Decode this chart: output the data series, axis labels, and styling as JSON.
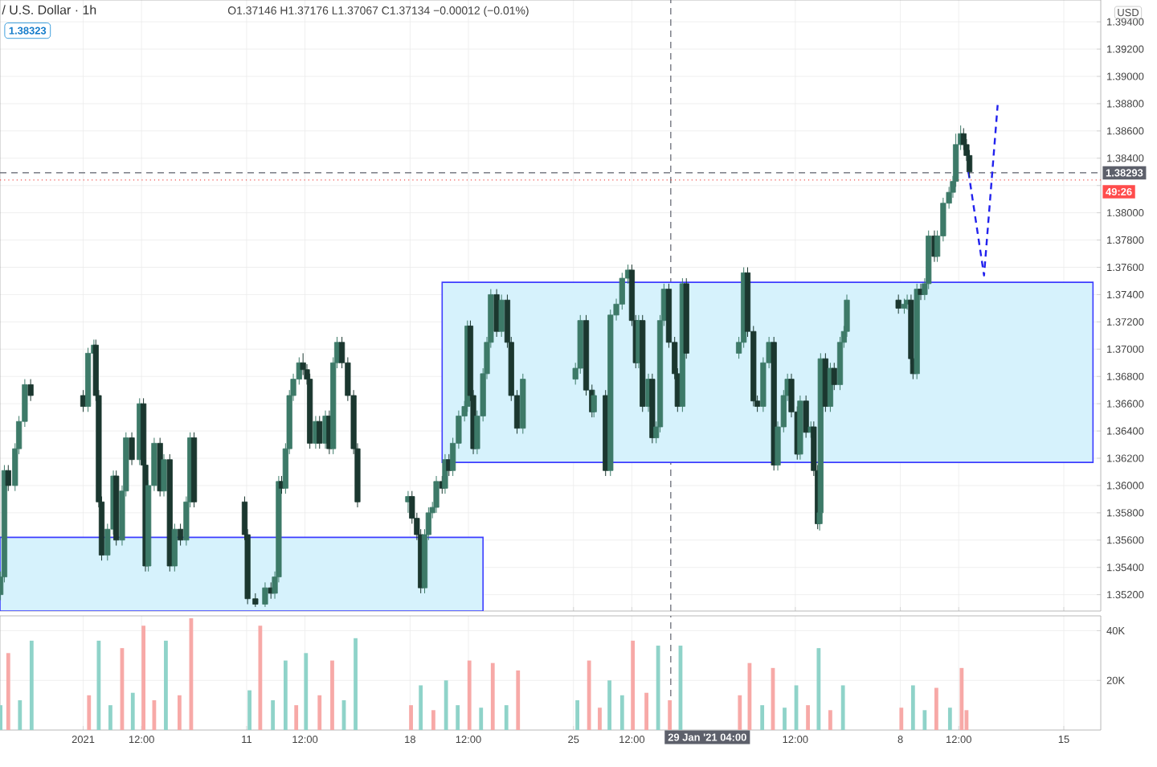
{
  "chart_data": [
    {
      "type": "candlestick",
      "title": "/ U.S. Dollar · 1h",
      "subtitle": "O1.37146 H1.37176 L1.37067 C1.37134 −0.00012 (−0.01%)",
      "ylabel": "USD",
      "annotations": [
        "1.38323",
        {
          "text": "49:26",
          "x": "2021-02-16T14:00",
          "y": 1.3824
        }
      ],
      "colors": [
        "#3d7a68",
        "#3d7a68",
        "#1b372f",
        "#3d7a68",
        "#3d7a68",
        "#3d7a68",
        "#1b372f",
        "#1b372f",
        "#3d7a68",
        "#3d7a68",
        "#1b372f",
        "#1b372f",
        "#1b372f",
        "#3d7a68",
        "#3d7a68",
        "#1b372f",
        "#3d7a68",
        "#3d7a68",
        "#1b372f",
        "#3d7a68",
        "#1b372f",
        "#1b372f",
        "#3d7a68",
        "#3d7a68",
        "#1b372f",
        "#3d7a68",
        "#1b372f",
        "#3d7a68",
        "#1b372f",
        "#3d7a68",
        "#3d7a68",
        "#1b372f",
        "#1b372f",
        "#1b372f",
        "#1b372f",
        "#3d7a68",
        "#1b372f",
        "#3d7a68",
        "#3d7a68",
        "#1b372f",
        "#3d7a68",
        "#3d7a68",
        "#3d7a68",
        "#3d7a68",
        "#1b372f",
        "#1b372f",
        "#1b372f",
        "#3d7a68",
        "#1b372f",
        "#3d7a68",
        "#1b372f",
        "#3d7a68",
        "#3d7a68",
        "#1b372f",
        "#1b372f",
        "#1b372f",
        "#1b372f",
        "#3d7a68",
        "#1b372f",
        "#1b372f",
        "#1b372f",
        "#3d7a68",
        "#3d7a68",
        "#3d7a68",
        "#3d7a68",
        "#1b372f",
        "#3d7a68",
        "#1b372f",
        "#3d7a68",
        "#3d7a68",
        "#3d7a68",
        "#3d7a68",
        "#1b372f",
        "#1b372f",
        "#3d7a68",
        "#3d7a68",
        "#3d7a68",
        "#3d7a68",
        "#1b372f",
        "#3d7a68",
        "#1b372f",
        "#1b372f",
        "#1b372f",
        "#3d7a68",
        "#3d7a68",
        "#3d7a68",
        "#1b372f",
        "#1b372f",
        "#3d7a68",
        "#1b372f",
        "#3d7a68",
        "#3d7a68",
        "#3d7a68",
        "#3d7a68",
        "#1b372f",
        "#1b372f",
        "#3d7a68",
        "#1b372f",
        "#3d7a68",
        "#1b372f",
        "#3d7a68",
        "#3d7a68",
        "#3d7a68",
        "#1b372f",
        "#1b372f",
        "#1b372f",
        "#3d7a68",
        "#1b372f",
        "#3d7a68",
        "#3d7a68",
        "#1b372f",
        "#1b372f",
        "#1b372f",
        "#3d7a68",
        "#3d7a68",
        "#1b372f",
        "#3d7a68",
        "#3d7a68",
        "#3d7a68",
        "#1b372f",
        "#1b372f",
        "#3d7a68",
        "#1b372f",
        "#3d7a68",
        "#1b372f",
        "#1b372f",
        "#3d7a68",
        "#3d7a68",
        "#1b372f",
        "#3d7a68",
        "#1b372f",
        "#3d7a68",
        "#3d7a68",
        "#3d7a68",
        "#1b372f",
        "#3d7a68",
        "#3d7a68",
        "#1b372f",
        "#1b372f",
        "#3d7a68",
        "#1b372f",
        "#3d7a68",
        "#3d7a68",
        "#1b372f",
        "#3d7a68",
        "#3d7a68",
        "#3d7a68",
        "#3d7a68",
        "#3d7a68",
        "#3d7a68",
        "#1b372f",
        "#1b372f",
        "#1b372f"
      ],
      "x": [
        "2020-12-31T11:00",
        "2020-12-31T15:00",
        "2020-12-31T19:00",
        "2021-01-01T02:00",
        "2021-01-01T06:00",
        "2021-01-01T12:00",
        "2021-01-01T18:00",
        "2021-01-04T00:00",
        "2021-01-04T05:00",
        "2021-01-04T11:00",
        "2021-01-04T13:00",
        "2021-01-04T16:00",
        "2021-01-04T19:00",
        "2021-01-05T01:00",
        "2021-01-05T07:00",
        "2021-01-05T10:00",
        "2021-01-05T16:00",
        "2021-01-05T20:00",
        "2021-01-06T02:00",
        "2021-01-06T10:00",
        "2021-01-06T14:00",
        "2021-01-06T16:00",
        "2021-01-06T19:00",
        "2021-01-07T01:00",
        "2021-01-07T07:00",
        "2021-01-07T11:00",
        "2021-01-07T17:00",
        "2021-01-07T22:00",
        "2021-01-08T04:00",
        "2021-01-08T10:00",
        "2021-01-08T14:00",
        "2021-01-08T18:00",
        "2021-01-10T22:00",
        "2021-01-11T01:00",
        "2021-01-11T09:00",
        "2021-01-11T19:00",
        "2021-01-12T01:00",
        "2021-01-12T05:00",
        "2021-01-12T09:00",
        "2021-01-12T12:00",
        "2021-01-12T16:00",
        "2021-01-12T20:00",
        "2021-01-13T00:00",
        "2021-01-13T06:00",
        "2021-01-13T10:00",
        "2021-01-13T14:00",
        "2021-01-13T17:00",
        "2021-01-13T23:00",
        "2021-01-14T03:00",
        "2021-01-14T09:00",
        "2021-01-14T13:00",
        "2021-01-14T17:00",
        "2021-01-14T21:00",
        "2021-01-15T02:00",
        "2021-01-15T08:00",
        "2021-01-15T14:00",
        "2021-01-15T18:00",
        "2021-01-17T22:00",
        "2021-01-18T02:00",
        "2021-01-18T07:00",
        "2021-01-18T11:00",
        "2021-01-18T15:00",
        "2021-01-18T19:00",
        "2021-01-18T23:00",
        "2021-01-19T03:00",
        "2021-01-19T09:00",
        "2021-01-19T12:00",
        "2021-01-19T16:00",
        "2021-01-19T20:00",
        "2021-01-20T02:00",
        "2021-01-20T08:00",
        "2021-01-20T11:00",
        "2021-01-20T14:00",
        "2021-01-20T17:00",
        "2021-01-20T21:00",
        "2021-01-21T03:00",
        "2021-01-21T07:00",
        "2021-01-21T11:00",
        "2021-01-21T17:00",
        "2021-01-21T22:00",
        "2021-01-22T04:00",
        "2021-01-22T08:00",
        "2021-01-22T14:00",
        "2021-01-22T20:00",
        "2021-01-25T02:00",
        "2021-01-25T07:00",
        "2021-01-25T13:00",
        "2021-01-25T19:00",
        "2021-01-25T21:00",
        "2021-01-26T09:00",
        "2021-01-26T14:00",
        "2021-01-26T20:00",
        "2021-01-27T02:00",
        "2021-01-27T08:00",
        "2021-01-27T12:00",
        "2021-01-27T16:00",
        "2021-01-27T19:00",
        "2021-01-27T23:00",
        "2021-01-28T05:00",
        "2021-01-28T09:00",
        "2021-01-28T13:00",
        "2021-01-28T17:00",
        "2021-01-28T21:00",
        "2021-01-29T02:00",
        "2021-01-29T08:00",
        "2021-01-29T11:00",
        "2021-01-29T16:00",
        "2021-01-29T20:00",
        "2021-02-01T02:00",
        "2021-02-01T07:00",
        "2021-02-01T11:00",
        "2021-02-01T17:00",
        "2021-02-01T21:00",
        "2021-02-02T03:00",
        "2021-02-02T09:00",
        "2021-02-02T14:00",
        "2021-02-02T18:00",
        "2021-02-03T00:00",
        "2021-02-03T04:00",
        "2021-02-03T08:00",
        "2021-02-03T14:00",
        "2021-02-03T17:00",
        "2021-02-03T23:00",
        "2021-02-04T04:00",
        "2021-02-04T07:00",
        "2021-02-04T11:00",
        "2021-02-04T13:00",
        "2021-02-04T14:00",
        "2021-02-04T19:00",
        "2021-02-05T00:00",
        "2021-02-05T04:00",
        "2021-02-05T10:00",
        "2021-02-05T14:00",
        "2021-02-05T17:00",
        "2021-02-07T22:00",
        "2021-02-08T04:00",
        "2021-02-08T07:00",
        "2021-02-08T11:00",
        "2021-02-08T13:00",
        "2021-02-08T17:00",
        "2021-02-08T21:00",
        "2021-02-09T01:00",
        "2021-02-09T05:00",
        "2021-02-09T11:00",
        "2021-02-09T14:00",
        "2021-02-09T20:00",
        "2021-02-10T02:00",
        "2021-02-10T06:00",
        "2021-02-10T09:00",
        "2021-02-10T14:00",
        "2021-02-10T17:00",
        "2021-02-10T20:00",
        "2021-02-10T23:00"
      ],
      "ohlc": [
        [
          1.352,
          1.3537,
          1.3516,
          1.3533
        ],
        [
          1.3533,
          1.3615,
          1.3529,
          1.3611
        ],
        [
          1.3611,
          1.3615,
          1.3596,
          1.36
        ],
        [
          1.36,
          1.3631,
          1.3596,
          1.3627
        ],
        [
          1.3627,
          1.3651,
          1.3623,
          1.3647
        ],
        [
          1.3647,
          1.3678,
          1.3643,
          1.3674
        ],
        [
          1.3674,
          1.3678,
          1.3662,
          1.3666
        ],
        [
          1.3666,
          1.367,
          1.3654,
          1.3658
        ],
        [
          1.3658,
          1.3701,
          1.3654,
          1.3697
        ],
        [
          1.3697,
          1.3707,
          1.3693,
          1.3703
        ],
        [
          1.3703,
          1.3707,
          1.3662,
          1.3666
        ],
        [
          1.3666,
          1.367,
          1.3584,
          1.3588
        ],
        [
          1.3588,
          1.3592,
          1.3545,
          1.3549
        ],
        [
          1.3549,
          1.3572,
          1.3545,
          1.3568
        ],
        [
          1.3568,
          1.3611,
          1.3564,
          1.3607
        ],
        [
          1.3607,
          1.3611,
          1.3556,
          1.356
        ],
        [
          1.356,
          1.36,
          1.3556,
          1.3596
        ],
        [
          1.3596,
          1.3639,
          1.3592,
          1.3635
        ],
        [
          1.3635,
          1.3639,
          1.3615,
          1.3619
        ],
        [
          1.3619,
          1.3664,
          1.3615,
          1.366
        ],
        [
          1.366,
          1.3664,
          1.3611,
          1.3615
        ],
        [
          1.3615,
          1.3619,
          1.3537,
          1.3541
        ],
        [
          1.3541,
          1.3604,
          1.3537,
          1.36
        ],
        [
          1.36,
          1.3635,
          1.3596,
          1.3631
        ],
        [
          1.3631,
          1.3635,
          1.3592,
          1.3596
        ],
        [
          1.3596,
          1.3623,
          1.3592,
          1.3619
        ],
        [
          1.3619,
          1.3623,
          1.3537,
          1.3541
        ],
        [
          1.3541,
          1.3572,
          1.3537,
          1.3568
        ],
        [
          1.3568,
          1.3572,
          1.3556,
          1.356
        ],
        [
          1.356,
          1.3592,
          1.3556,
          1.3588
        ],
        [
          1.3588,
          1.3639,
          1.3584,
          1.3635
        ],
        [
          1.3635,
          1.3639,
          1.3584,
          1.3588
        ],
        [
          1.3588,
          1.3592,
          1.356,
          1.3564
        ],
        [
          1.3564,
          1.3568,
          1.3513,
          1.3517
        ],
        [
          1.3517,
          1.3521,
          1.3511,
          1.3513
        ],
        [
          1.3513,
          1.3529,
          1.3511,
          1.3525
        ],
        [
          1.3525,
          1.3529,
          1.3517,
          1.3521
        ],
        [
          1.3521,
          1.3537,
          1.3517,
          1.3533
        ],
        [
          1.3533,
          1.3607,
          1.3529,
          1.3603
        ],
        [
          1.3603,
          1.3607,
          1.3594,
          1.3598
        ],
        [
          1.3598,
          1.3631,
          1.3594,
          1.3627
        ],
        [
          1.3627,
          1.367,
          1.3623,
          1.3666
        ],
        [
          1.3666,
          1.3682,
          1.3662,
          1.3678
        ],
        [
          1.3678,
          1.3694,
          1.3674,
          1.369
        ],
        [
          1.369,
          1.3697,
          1.3681,
          1.3685
        ],
        [
          1.3685,
          1.3689,
          1.3674,
          1.3678
        ],
        [
          1.3678,
          1.3682,
          1.3627,
          1.3631
        ],
        [
          1.3631,
          1.3651,
          1.3627,
          1.3647
        ],
        [
          1.3647,
          1.3651,
          1.3627,
          1.3631
        ],
        [
          1.3631,
          1.3655,
          1.3627,
          1.3651
        ],
        [
          1.3651,
          1.3655,
          1.3623,
          1.3627
        ],
        [
          1.3627,
          1.3694,
          1.3623,
          1.369
        ],
        [
          1.369,
          1.3709,
          1.3686,
          1.3705
        ],
        [
          1.3705,
          1.3709,
          1.3686,
          1.369
        ],
        [
          1.369,
          1.3694,
          1.3662,
          1.3666
        ],
        [
          1.3666,
          1.367,
          1.3623,
          1.3627
        ],
        [
          1.3627,
          1.3631,
          1.3584,
          1.3588
        ],
        [
          1.3588,
          1.3596,
          1.358,
          1.3592
        ],
        [
          1.3592,
          1.3596,
          1.3572,
          1.3576
        ],
        [
          1.3576,
          1.358,
          1.356,
          1.3564
        ],
        [
          1.3564,
          1.3568,
          1.3521,
          1.3525
        ],
        [
          1.3525,
          1.3568,
          1.3521,
          1.3564
        ],
        [
          1.3564,
          1.3584,
          1.356,
          1.358
        ],
        [
          1.358,
          1.3588,
          1.3576,
          1.3584
        ],
        [
          1.3584,
          1.3607,
          1.358,
          1.3603
        ],
        [
          1.3603,
          1.3607,
          1.3594,
          1.3598
        ],
        [
          1.3598,
          1.3623,
          1.3594,
          1.3619
        ],
        [
          1.3619,
          1.3623,
          1.3607,
          1.3611
        ],
        [
          1.3611,
          1.3635,
          1.3607,
          1.3631
        ],
        [
          1.3631,
          1.3655,
          1.3627,
          1.3651
        ],
        [
          1.3651,
          1.3662,
          1.3647,
          1.3658
        ],
        [
          1.3658,
          1.3721,
          1.3654,
          1.3717
        ],
        [
          1.3717,
          1.3721,
          1.3662,
          1.3666
        ],
        [
          1.3666,
          1.367,
          1.3623,
          1.3627
        ],
        [
          1.3627,
          1.3655,
          1.3623,
          1.3651
        ],
        [
          1.3651,
          1.3686,
          1.3647,
          1.3682
        ],
        [
          1.3682,
          1.3709,
          1.3678,
          1.3705
        ],
        [
          1.3705,
          1.3744,
          1.3701,
          1.374
        ],
        [
          1.374,
          1.3744,
          1.3709,
          1.3713
        ],
        [
          1.3713,
          1.374,
          1.3709,
          1.3736
        ],
        [
          1.3736,
          1.374,
          1.3701,
          1.3705
        ],
        [
          1.3705,
          1.3709,
          1.3662,
          1.3666
        ],
        [
          1.3666,
          1.367,
          1.3638,
          1.3642
        ],
        [
          1.3642,
          1.3682,
          1.3638,
          1.3678
        ],
        [
          1.3678,
          1.369,
          1.3674,
          1.3686
        ],
        [
          1.3686,
          1.3725,
          1.3682,
          1.3721
        ],
        [
          1.3721,
          1.3725,
          1.3666,
          1.367
        ],
        [
          1.367,
          1.3674,
          1.365,
          1.3654
        ],
        [
          1.3654,
          1.367,
          1.365,
          1.3666
        ],
        [
          1.3666,
          1.367,
          1.3607,
          1.3611
        ],
        [
          1.3611,
          1.3729,
          1.3607,
          1.3725
        ],
        [
          1.3725,
          1.3737,
          1.3721,
          1.3733
        ],
        [
          1.3733,
          1.3756,
          1.3729,
          1.3752
        ],
        [
          1.3752,
          1.3762,
          1.3748,
          1.3758
        ],
        [
          1.3758,
          1.3762,
          1.3717,
          1.3721
        ],
        [
          1.3721,
          1.3725,
          1.3686,
          1.369
        ],
        [
          1.369,
          1.3725,
          1.3686,
          1.3721
        ],
        [
          1.3721,
          1.3725,
          1.3654,
          1.3658
        ],
        [
          1.3658,
          1.3682,
          1.3654,
          1.3678
        ],
        [
          1.3678,
          1.3682,
          1.3631,
          1.3635
        ],
        [
          1.3635,
          1.3647,
          1.3631,
          1.3643
        ],
        [
          1.3643,
          1.3725,
          1.3639,
          1.3721
        ],
        [
          1.3721,
          1.3748,
          1.3717,
          1.3744
        ],
        [
          1.3744,
          1.3748,
          1.3701,
          1.3705
        ],
        [
          1.3705,
          1.3709,
          1.3678,
          1.3682
        ],
        [
          1.3682,
          1.3686,
          1.3654,
          1.3658
        ],
        [
          1.3658,
          1.3752,
          1.3654,
          1.3748
        ],
        [
          1.3748,
          1.3752,
          1.3693,
          1.3697
        ],
        [
          1.3697,
          1.3709,
          1.3693,
          1.3705
        ],
        [
          1.3705,
          1.376,
          1.3701,
          1.3756
        ],
        [
          1.3756,
          1.376,
          1.3709,
          1.3713
        ],
        [
          1.3713,
          1.3717,
          1.3658,
          1.3662
        ],
        [
          1.3662,
          1.3666,
          1.3654,
          1.3658
        ],
        [
          1.3658,
          1.3694,
          1.3654,
          1.369
        ],
        [
          1.369,
          1.3709,
          1.3686,
          1.3705
        ],
        [
          1.3705,
          1.3709,
          1.3611,
          1.3615
        ],
        [
          1.3615,
          1.3647,
          1.3611,
          1.3643
        ],
        [
          1.3643,
          1.367,
          1.3639,
          1.3666
        ],
        [
          1.3666,
          1.3682,
          1.3662,
          1.3678
        ],
        [
          1.3678,
          1.3682,
          1.365,
          1.3654
        ],
        [
          1.3654,
          1.3658,
          1.3619,
          1.3623
        ],
        [
          1.3623,
          1.3666,
          1.3619,
          1.3662
        ],
        [
          1.3662,
          1.3666,
          1.3635,
          1.3639
        ],
        [
          1.3639,
          1.3647,
          1.3635,
          1.3643
        ],
        [
          1.3643,
          1.3647,
          1.3607,
          1.3611
        ],
        [
          1.3611,
          1.3615,
          1.3568,
          1.3572
        ],
        [
          1.3572,
          1.3584,
          1.3567,
          1.358
        ],
        [
          1.358,
          1.3697,
          1.3576,
          1.3693
        ],
        [
          1.3693,
          1.3697,
          1.3654,
          1.3658
        ],
        [
          1.3658,
          1.369,
          1.3654,
          1.3686
        ],
        [
          1.3686,
          1.369,
          1.367,
          1.3674
        ],
        [
          1.3674,
          1.3709,
          1.367,
          1.3705
        ],
        [
          1.3705,
          1.3717,
          1.3701,
          1.3713
        ],
        [
          1.3713,
          1.374,
          1.3709,
          1.3736
        ],
        [
          1.3736,
          1.374,
          1.3726,
          1.373
        ],
        [
          1.373,
          1.3737,
          1.3726,
          1.3733
        ],
        [
          1.3733,
          1.374,
          1.3729,
          1.3736
        ],
        [
          1.3736,
          1.374,
          1.3689,
          1.3693
        ],
        [
          1.3693,
          1.3697,
          1.3678,
          1.3682
        ],
        [
          1.3682,
          1.3748,
          1.3678,
          1.3744
        ],
        [
          1.3744,
          1.3748,
          1.3736,
          1.374
        ],
        [
          1.374,
          1.3752,
          1.3736,
          1.3748
        ],
        [
          1.3748,
          1.3787,
          1.3744,
          1.3783
        ],
        [
          1.3783,
          1.3787,
          1.3764,
          1.3768
        ],
        [
          1.3768,
          1.3787,
          1.3764,
          1.3783
        ],
        [
          1.3783,
          1.3811,
          1.3779,
          1.3807
        ],
        [
          1.3807,
          1.3819,
          1.3803,
          1.3815
        ],
        [
          1.3815,
          1.3827,
          1.3811,
          1.3823
        ],
        [
          1.3823,
          1.3858,
          1.3819,
          1.385
        ],
        [
          1.385,
          1.3864,
          1.3846,
          1.3858
        ],
        [
          1.3858,
          1.3862,
          1.3846,
          1.385
        ],
        [
          1.385,
          1.3854,
          1.3838,
          1.3842
        ],
        [
          1.3842,
          1.3846,
          1.3826,
          1.383
        ]
      ],
      "series": [
        {
          "type": "line",
          "color": "#3d3dff",
          "x": [
            "2021-01-19T09:00",
            "2021-02-16T06:00"
          ],
          "values": [
            null,
            null
          ],
          "lower": [
            1.3617,
            1.3617
          ],
          "upper": [
            1.3749,
            1.3749
          ]
        },
        {
          "type": "line",
          "color": "#3d3dff",
          "x": [
            "2020-12-31T10:30",
            "2021-01-21T03:00"
          ],
          "values": [
            null,
            null
          ],
          "lower": [
            1.3508,
            1.3508
          ],
          "upper": [
            1.3562,
            1.3562
          ]
        },
        {
          "type": "line",
          "color": "#2222ee",
          "line_style": "dashed",
          "x": [
            "2021-02-10T22:00",
            "2021-02-11T14:00",
            "2021-02-12T04:00"
          ],
          "values": [
            1.383,
            1.3754,
            1.3879
          ]
        }
      ],
      "xlim": [
        "2020-12-31T10:30",
        "2021-02-16T14:00"
      ],
      "xticks": [
        {
          "value": "2021-01-04",
          "label": null
        },
        {
          "value": "2021-01-06T12:00",
          "label": null
        },
        {
          "value": "2021-01-11",
          "label": null
        },
        {
          "value": "2021-01-13T12:00",
          "label": null
        },
        {
          "value": "2021-01-18",
          "label": null
        },
        {
          "value": "2021-01-20T12:00",
          "label": null
        },
        {
          "value": "2021-01-25",
          "label": null
        },
        {
          "value": "2021-01-27T12:00",
          "label": null
        },
        {
          "value": "2021-02-03T12:00",
          "label": null
        },
        {
          "value": "2021-02-08",
          "label": null
        },
        {
          "value": "2021-02-10T12:00",
          "label": null
        },
        {
          "value": "2021-02-15",
          "label": null
        }
      ],
      "ylim": [
        1.3508,
        1.3956
      ],
      "yticks": [
        {
          "value": 1.352,
          "label": "1.35200"
        },
        {
          "value": 1.354,
          "label": "1.35400"
        },
        {
          "value": 1.356,
          "label": "1.35600"
        },
        {
          "value": 1.358,
          "label": "1.35800"
        },
        {
          "value": 1.36,
          "label": "1.36000"
        },
        {
          "value": 1.362,
          "label": "1.36200"
        },
        {
          "value": 1.364,
          "label": "1.36400"
        },
        {
          "value": 1.366,
          "label": "1.36600"
        },
        {
          "value": 1.368,
          "label": "1.36800"
        },
        {
          "value": 1.37,
          "label": "1.37000"
        },
        {
          "value": 1.372,
          "label": "1.37200"
        },
        {
          "value": 1.374,
          "label": "1.37400"
        },
        {
          "value": 1.376,
          "label": "1.37600"
        },
        {
          "value": 1.378,
          "label": "1.37800"
        },
        {
          "value": 1.38,
          "label": "1.38000"
        },
        {
          "value": 1.382,
          "label": null
        },
        {
          "value": 1.384,
          "label": "1.38400"
        },
        {
          "value": 1.386,
          "label": "1.38600"
        },
        {
          "value": 1.388,
          "label": "1.38800"
        },
        {
          "value": 1.39,
          "label": "1.39000"
        },
        {
          "value": 1.392,
          "label": "1.39200"
        },
        {
          "value": 1.394,
          "label": "1.39400"
        }
      ],
      "grid": true,
      "tick_labels": "y",
      "ref_lines": [
        {
          "axis": "x",
          "value": "2021-01-29T04:00",
          "color": "#5d606b",
          "line_style": "dashed"
        },
        {
          "axis": "y",
          "value": 1.38293,
          "label": "1.38293",
          "color": "#5d606b",
          "line_style": "dashed"
        },
        {
          "axis": "y",
          "value": 1.3824,
          "color": "#ef5350",
          "line_style": "dotted"
        }
      ]
    },
    {
      "type": "bar",
      "x": [
        "2020-12-31T11:00",
        "2020-12-31T19:00",
        "2021-01-01T07:00",
        "2021-01-01T19:00",
        "2021-01-04T06:00",
        "2021-01-04T16:00",
        "2021-01-05T04:00",
        "2021-01-05T16:00",
        "2021-01-06T03:00",
        "2021-01-06T14:00",
        "2021-01-07T01:00",
        "2021-01-07T13:00",
        "2021-01-08T03:00",
        "2021-01-08T15:00",
        "2021-01-11T03:00",
        "2021-01-11T14:00",
        "2021-01-12T03:00",
        "2021-01-12T16:00",
        "2021-01-13T03:00",
        "2021-01-13T13:00",
        "2021-01-14T03:00",
        "2021-01-14T16:00",
        "2021-01-15T04:00",
        "2021-01-15T16:00",
        "2021-01-18T01:00",
        "2021-01-18T11:00",
        "2021-01-19T00:00",
        "2021-01-19T13:00",
        "2021-01-20T01:00",
        "2021-01-20T13:00",
        "2021-01-21T01:00",
        "2021-01-21T13:00",
        "2021-01-22T03:00",
        "2021-01-22T15:00",
        "2021-01-25T04:00",
        "2021-01-25T16:00",
        "2021-01-26T03:00",
        "2021-01-26T13:00",
        "2021-01-27T02:00",
        "2021-01-27T13:00",
        "2021-01-28T03:00",
        "2021-01-28T15:00",
        "2021-01-29T03:00",
        "2021-01-29T14:00",
        "2021-02-01T03:00",
        "2021-02-01T13:00",
        "2021-02-02T02:00",
        "2021-02-02T13:00",
        "2021-02-03T01:00",
        "2021-02-03T13:00",
        "2021-02-04T01:00",
        "2021-02-04T12:00",
        "2021-02-05T00:00",
        "2021-02-05T13:00",
        "2021-02-08T01:00",
        "2021-02-08T13:00",
        "2021-02-09T01:00",
        "2021-02-09T13:00",
        "2021-02-10T03:00",
        "2021-02-10T15:00",
        "2021-02-10T20:00"
      ],
      "values": [
        10000,
        31000,
        12000,
        36000,
        14000,
        36000,
        10000,
        33000,
        15000,
        42000,
        12000,
        36000,
        14000,
        45000,
        16000,
        42000,
        12000,
        28000,
        10000,
        31000,
        14000,
        28000,
        12000,
        37000,
        10000,
        18000,
        8000,
        20000,
        10000,
        28000,
        9000,
        27000,
        10000,
        24000,
        12000,
        28000,
        9000,
        20000,
        14000,
        36000,
        15000,
        34000,
        12000,
        34000,
        14000,
        27000,
        10000,
        25000,
        9000,
        18000,
        10000,
        33000,
        8000,
        18000,
        9000,
        18000,
        8000,
        17000,
        9000,
        25000,
        8000
      ],
      "colors": [
        "#8fd3c9",
        "#f7a9a7",
        "#8fd3c9",
        "#8fd3c9",
        "#f7a9a7",
        "#8fd3c9",
        "#8fd3c9",
        "#f7a9a7",
        "#8fd3c9",
        "#f7a9a7",
        "#f7a9a7",
        "#8fd3c9",
        "#f7a9a7",
        "#f7a9a7",
        "#8fd3c9",
        "#f7a9a7",
        "#8fd3c9",
        "#8fd3c9",
        "#f7a9a7",
        "#8fd3c9",
        "#f7a9a7",
        "#f7a9a7",
        "#8fd3c9",
        "#8fd3c9",
        "#f7a9a7",
        "#8fd3c9",
        "#f7a9a7",
        "#8fd3c9",
        "#8fd3c9",
        "#f7a9a7",
        "#8fd3c9",
        "#f7a9a7",
        "#8fd3c9",
        "#f7a9a7",
        "#8fd3c9",
        "#f7a9a7",
        "#f7a9a7",
        "#8fd3c9",
        "#8fd3c9",
        "#f7a9a7",
        "#f7a9a7",
        "#8fd3c9",
        "#f7a9a7",
        "#8fd3c9",
        "#f7a9a7",
        "#f7a9a7",
        "#8fd3c9",
        "#f7a9a7",
        "#8fd3c9",
        "#8fd3c9",
        "#f7a9a7",
        "#8fd3c9",
        "#f7a9a7",
        "#8fd3c9",
        "#f7a9a7",
        "#8fd3c9",
        "#8fd3c9",
        "#f7a9a7",
        "#8fd3c9",
        "#f7a9a7",
        "#f7a9a7"
      ],
      "xlim": [
        "2020-12-31T10:30",
        "2021-02-16T14:00"
      ],
      "xticks": [
        {
          "value": "2021-01-04",
          "label": "2021"
        },
        {
          "value": "2021-01-06T12:00",
          "label": "12:00"
        },
        {
          "value": "2021-01-11",
          "label": "11"
        },
        {
          "value": "2021-01-13T12:00",
          "label": "12:00"
        },
        {
          "value": "2021-01-18",
          "label": "18"
        },
        {
          "value": "2021-01-20T12:00",
          "label": "12:00"
        },
        {
          "value": "2021-01-25",
          "label": "25"
        },
        {
          "value": "2021-01-27T12:00",
          "label": "12:00"
        },
        {
          "value": "2021-02-03T12:00",
          "label": "12:00"
        },
        {
          "value": "2021-02-08",
          "label": "8"
        },
        {
          "value": "2021-02-10T12:00",
          "label": "12:00"
        },
        {
          "value": "2021-02-15",
          "label": "15"
        }
      ],
      "ylim": [
        0,
        46000
      ],
      "yticks": [
        {
          "value": 20000,
          "label": "20K"
        },
        {
          "value": 40000,
          "label": "40K"
        }
      ],
      "grid": true,
      "ref_lines": [
        {
          "axis": "x",
          "value": "2021-01-29T04:00",
          "label": "29 Jan '21  04:00",
          "color": "#5d606b",
          "line_style": "dashed"
        }
      ]
    }
  ]
}
